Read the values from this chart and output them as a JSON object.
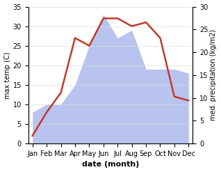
{
  "months": [
    "Jan",
    "Feb",
    "Mar",
    "Apr",
    "May",
    "Jun",
    "Jul",
    "Aug",
    "Sep",
    "Oct",
    "Nov",
    "Dec"
  ],
  "temp": [
    2,
    8,
    13,
    27,
    25,
    32,
    32,
    30,
    31,
    27,
    12,
    11
  ],
  "precip": [
    8,
    10,
    10,
    15,
    25,
    33,
    27,
    29,
    19,
    19,
    19,
    18
  ],
  "temp_color": "#c0392b",
  "precip_fill_color": "#b8c4ee",
  "title": "",
  "xlabel": "date (month)",
  "ylabel_left": "max temp (C)",
  "ylabel_right": "med. precipitation (kg/m2)",
  "ylim_left": [
    0,
    35
  ],
  "ylim_right": [
    0,
    30
  ],
  "yticks_left": [
    0,
    5,
    10,
    15,
    20,
    25,
    30,
    35
  ],
  "yticks_right": [
    0,
    5,
    10,
    15,
    20,
    25,
    30
  ],
  "bg_color": "#ffffff",
  "plot_bg_color": "#ffffff",
  "grid_color": "#dddddd",
  "temp_linewidth": 1.8,
  "xlabel_fontsize": 8,
  "ylabel_fontsize": 7,
  "tick_fontsize": 7
}
